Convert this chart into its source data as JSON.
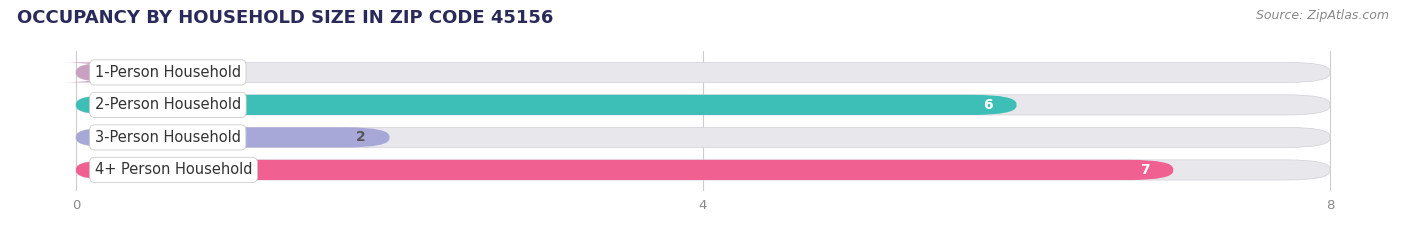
{
  "title": "OCCUPANCY BY HOUSEHOLD SIZE IN ZIP CODE 45156",
  "source": "Source: ZipAtlas.com",
  "categories": [
    "1-Person Household",
    "2-Person Household",
    "3-Person Household",
    "4+ Person Household"
  ],
  "values": [
    0,
    6,
    2,
    7
  ],
  "bar_colors": [
    "#c9a0c0",
    "#3dbfb8",
    "#a8a8d8",
    "#f06090"
  ],
  "value_colors": [
    "#555555",
    "#ffffff",
    "#555555",
    "#ffffff"
  ],
  "bar_height": 0.62,
  "xlim": [
    -0.35,
    8.35
  ],
  "data_max": 8,
  "xticks": [
    0,
    4,
    8
  ],
  "background_color": "#ffffff",
  "bar_bg_color": "#e8e8ec",
  "title_fontsize": 13,
  "label_fontsize": 10.5,
  "value_fontsize": 10,
  "source_fontsize": 9,
  "title_color": "#2a2a5a",
  "label_color": "#333333",
  "tick_color": "#888888",
  "source_color": "#888888",
  "grid_color": "#cccccc"
}
